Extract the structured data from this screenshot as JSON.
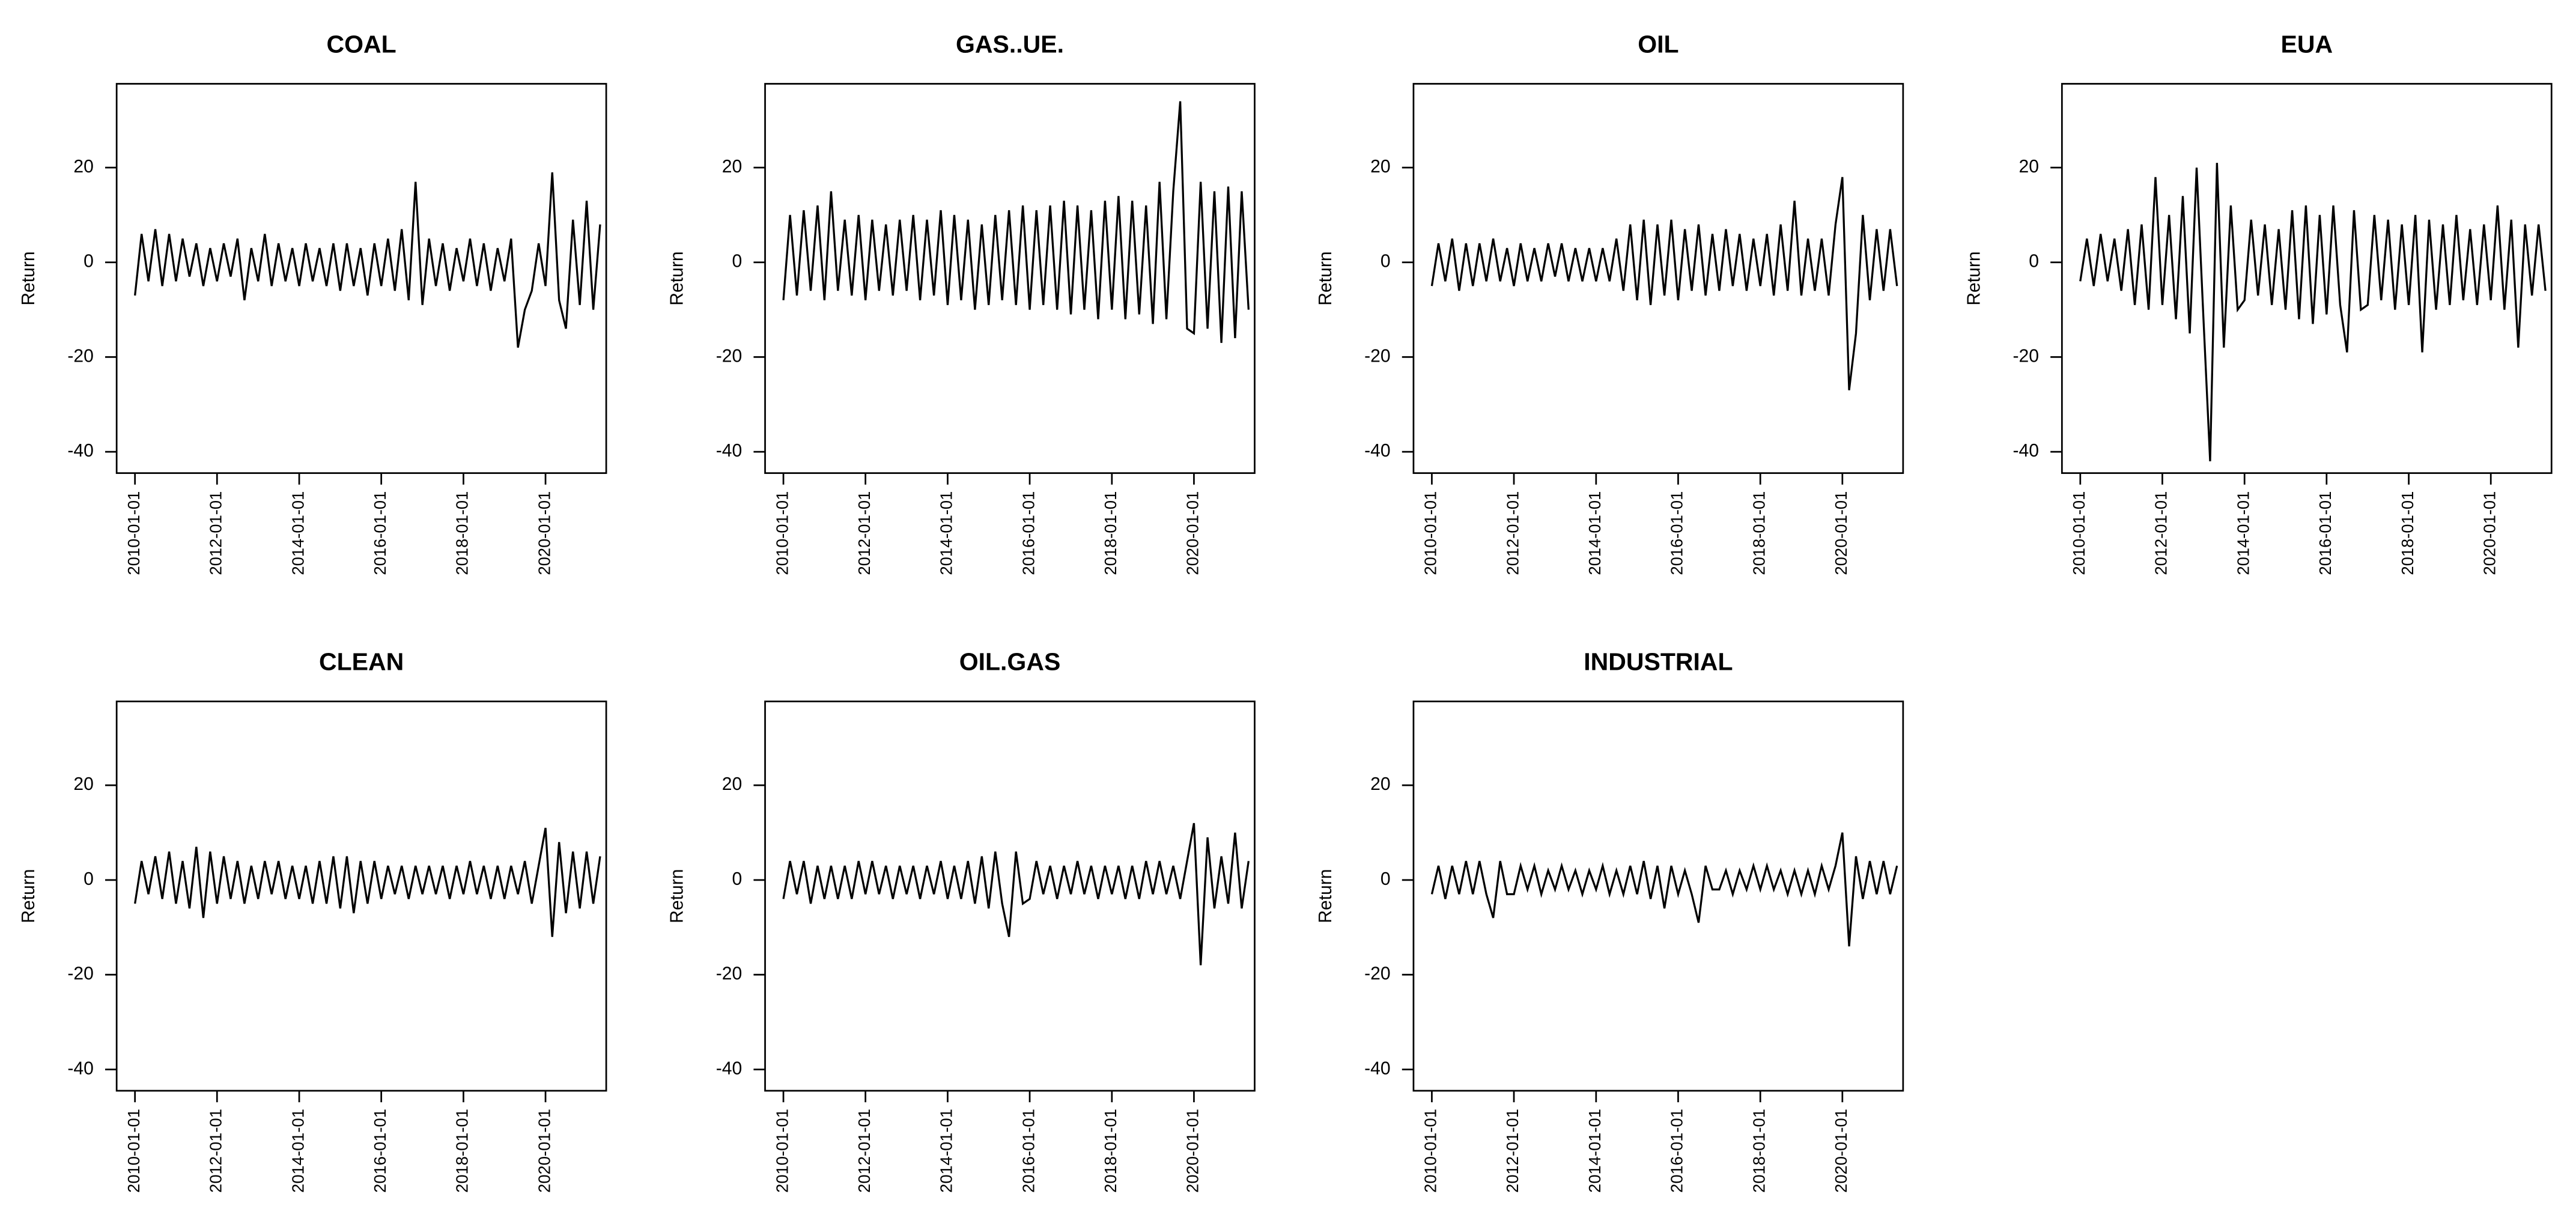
{
  "chart_data": [
    {
      "type": "line",
      "title": "COAL",
      "ylabel": "Return",
      "color": "#000000",
      "x": [
        "2010-01-01",
        "2010-03-01",
        "2010-05-01",
        "2010-07-01",
        "2010-09-01",
        "2010-11-01",
        "2011-01-01",
        "2011-03-01",
        "2011-05-01",
        "2011-07-01",
        "2011-09-01",
        "2011-11-01",
        "2012-01-01",
        "2012-03-01",
        "2012-05-01",
        "2012-07-01",
        "2012-09-01",
        "2012-11-01",
        "2013-01-01",
        "2013-03-01",
        "2013-05-01",
        "2013-07-01",
        "2013-09-01",
        "2013-11-01",
        "2014-01-01",
        "2014-03-01",
        "2014-05-01",
        "2014-07-01",
        "2014-09-01",
        "2014-11-01",
        "2015-01-01",
        "2015-03-01",
        "2015-05-01",
        "2015-07-01",
        "2015-09-01",
        "2015-11-01",
        "2016-01-01",
        "2016-03-01",
        "2016-05-01",
        "2016-07-01",
        "2016-09-01",
        "2016-11-01",
        "2017-01-01",
        "2017-03-01",
        "2017-05-01",
        "2017-07-01",
        "2017-09-01",
        "2017-11-01",
        "2018-01-01",
        "2018-03-01",
        "2018-05-01",
        "2018-07-01",
        "2018-09-01",
        "2018-11-01",
        "2019-01-01",
        "2019-03-01",
        "2019-05-01",
        "2019-07-01",
        "2019-09-01",
        "2019-11-01",
        "2020-01-01",
        "2020-03-01",
        "2020-05-01",
        "2020-07-01",
        "2020-09-01",
        "2020-11-01",
        "2021-01-01",
        "2021-03-01",
        "2021-05-01"
      ],
      "values": [
        -7,
        6,
        -4,
        7,
        -5,
        6,
        -4,
        5,
        -3,
        4,
        -5,
        3,
        -4,
        4,
        -3,
        5,
        -8,
        3,
        -4,
        6,
        -5,
        4,
        -4,
        3,
        -5,
        4,
        -4,
        3,
        -5,
        4,
        -6,
        4,
        -5,
        3,
        -7,
        4,
        -5,
        5,
        -6,
        7,
        -8,
        17,
        -9,
        5,
        -5,
        4,
        -6,
        3,
        -4,
        5,
        -5,
        4,
        -6,
        3,
        -4,
        5,
        -18,
        -10,
        -6,
        4,
        -5,
        19,
        -8,
        -14,
        9,
        -9,
        13,
        -10,
        8
      ],
      "xlim": [
        "2009-07-22",
        "2021-06-24"
      ],
      "xticks": [
        "2010-01-01",
        "2012-01-01",
        "2014-01-01",
        "2016-01-01",
        "2018-01-01",
        "2020-01-01"
      ],
      "ylim": [
        -44.5,
        37.7
      ],
      "yticks": [
        -40,
        -20,
        0,
        20
      ]
    },
    {
      "type": "line",
      "title": "GAS..UE.",
      "ylabel": "Return",
      "color": "#000000",
      "x": [
        "2010-01-01",
        "2010-03-01",
        "2010-05-01",
        "2010-07-01",
        "2010-09-01",
        "2010-11-01",
        "2011-01-01",
        "2011-03-01",
        "2011-05-01",
        "2011-07-01",
        "2011-09-01",
        "2011-11-01",
        "2012-01-01",
        "2012-03-01",
        "2012-05-01",
        "2012-07-01",
        "2012-09-01",
        "2012-11-01",
        "2013-01-01",
        "2013-03-01",
        "2013-05-01",
        "2013-07-01",
        "2013-09-01",
        "2013-11-01",
        "2014-01-01",
        "2014-03-01",
        "2014-05-01",
        "2014-07-01",
        "2014-09-01",
        "2014-11-01",
        "2015-01-01",
        "2015-03-01",
        "2015-05-01",
        "2015-07-01",
        "2015-09-01",
        "2015-11-01",
        "2016-01-01",
        "2016-03-01",
        "2016-05-01",
        "2016-07-01",
        "2016-09-01",
        "2016-11-01",
        "2017-01-01",
        "2017-03-01",
        "2017-05-01",
        "2017-07-01",
        "2017-09-01",
        "2017-11-01",
        "2018-01-01",
        "2018-03-01",
        "2018-05-01",
        "2018-07-01",
        "2018-09-01",
        "2018-11-01",
        "2019-01-01",
        "2019-03-01",
        "2019-05-01",
        "2019-07-01",
        "2019-09-01",
        "2019-11-01",
        "2020-01-01",
        "2020-03-01",
        "2020-05-01",
        "2020-07-01",
        "2020-09-01",
        "2020-11-01",
        "2021-01-01",
        "2021-03-01",
        "2021-05-01"
      ],
      "values": [
        -8,
        10,
        -7,
        11,
        -6,
        12,
        -8,
        15,
        -6,
        9,
        -7,
        10,
        -8,
        9,
        -6,
        8,
        -7,
        9,
        -6,
        10,
        -8,
        9,
        -7,
        11,
        -9,
        10,
        -8,
        9,
        -10,
        8,
        -9,
        10,
        -8,
        11,
        -9,
        12,
        -10,
        11,
        -9,
        12,
        -10,
        13,
        -11,
        12,
        -10,
        11,
        -12,
        13,
        -10,
        14,
        -12,
        13,
        -11,
        12,
        -13,
        17,
        -12,
        15,
        34,
        -14,
        -15,
        17,
        -14,
        15,
        -17,
        16,
        -16,
        15,
        -10
      ],
      "xlim": [
        "2009-07-22",
        "2021-06-24"
      ],
      "xticks": [
        "2010-01-01",
        "2012-01-01",
        "2014-01-01",
        "2016-01-01",
        "2018-01-01",
        "2020-01-01"
      ],
      "ylim": [
        -44.5,
        37.7
      ],
      "yticks": [
        -40,
        -20,
        0,
        20
      ]
    },
    {
      "type": "line",
      "title": "OIL",
      "ylabel": "Return",
      "color": "#000000",
      "x": [
        "2010-01-01",
        "2010-03-01",
        "2010-05-01",
        "2010-07-01",
        "2010-09-01",
        "2010-11-01",
        "2011-01-01",
        "2011-03-01",
        "2011-05-01",
        "2011-07-01",
        "2011-09-01",
        "2011-11-01",
        "2012-01-01",
        "2012-03-01",
        "2012-05-01",
        "2012-07-01",
        "2012-09-01",
        "2012-11-01",
        "2013-01-01",
        "2013-03-01",
        "2013-05-01",
        "2013-07-01",
        "2013-09-01",
        "2013-11-01",
        "2014-01-01",
        "2014-03-01",
        "2014-05-01",
        "2014-07-01",
        "2014-09-01",
        "2014-11-01",
        "2015-01-01",
        "2015-03-01",
        "2015-05-01",
        "2015-07-01",
        "2015-09-01",
        "2015-11-01",
        "2016-01-01",
        "2016-03-01",
        "2016-05-01",
        "2016-07-01",
        "2016-09-01",
        "2016-11-01",
        "2017-01-01",
        "2017-03-01",
        "2017-05-01",
        "2017-07-01",
        "2017-09-01",
        "2017-11-01",
        "2018-01-01",
        "2018-03-01",
        "2018-05-01",
        "2018-07-01",
        "2018-09-01",
        "2018-11-01",
        "2019-01-01",
        "2019-03-01",
        "2019-05-01",
        "2019-07-01",
        "2019-09-01",
        "2019-11-01",
        "2020-01-01",
        "2020-03-01",
        "2020-05-01",
        "2020-07-01",
        "2020-09-01",
        "2020-11-01",
        "2021-01-01",
        "2021-03-01",
        "2021-05-01"
      ],
      "values": [
        -5,
        4,
        -4,
        5,
        -6,
        4,
        -5,
        4,
        -4,
        5,
        -4,
        3,
        -5,
        4,
        -4,
        3,
        -4,
        4,
        -3,
        4,
        -4,
        3,
        -4,
        3,
        -4,
        3,
        -4,
        5,
        -6,
        8,
        -8,
        9,
        -9,
        8,
        -7,
        9,
        -8,
        7,
        -6,
        8,
        -7,
        6,
        -6,
        7,
        -5,
        6,
        -6,
        5,
        -5,
        6,
        -7,
        8,
        -6,
        13,
        -7,
        5,
        -6,
        5,
        -7,
        8,
        18,
        -27,
        -15,
        10,
        -8,
        7,
        -6,
        7,
        -5
      ],
      "xlim": [
        "2009-07-22",
        "2021-06-24"
      ],
      "xticks": [
        "2010-01-01",
        "2012-01-01",
        "2014-01-01",
        "2016-01-01",
        "2018-01-01",
        "2020-01-01"
      ],
      "ylim": [
        -44.5,
        37.7
      ],
      "yticks": [
        -40,
        -20,
        0,
        20
      ]
    },
    {
      "type": "line",
      "title": "EUA",
      "ylabel": "Return",
      "color": "#000000",
      "x": [
        "2010-01-01",
        "2010-03-01",
        "2010-05-01",
        "2010-07-01",
        "2010-09-01",
        "2010-11-01",
        "2011-01-01",
        "2011-03-01",
        "2011-05-01",
        "2011-07-01",
        "2011-09-01",
        "2011-11-01",
        "2012-01-01",
        "2012-03-01",
        "2012-05-01",
        "2012-07-01",
        "2012-09-01",
        "2012-11-01",
        "2013-01-01",
        "2013-03-01",
        "2013-05-01",
        "2013-07-01",
        "2013-09-01",
        "2013-11-01",
        "2014-01-01",
        "2014-03-01",
        "2014-05-01",
        "2014-07-01",
        "2014-09-01",
        "2014-11-01",
        "2015-01-01",
        "2015-03-01",
        "2015-05-01",
        "2015-07-01",
        "2015-09-01",
        "2015-11-01",
        "2016-01-01",
        "2016-03-01",
        "2016-05-01",
        "2016-07-01",
        "2016-09-01",
        "2016-11-01",
        "2017-01-01",
        "2017-03-01",
        "2017-05-01",
        "2017-07-01",
        "2017-09-01",
        "2017-11-01",
        "2018-01-01",
        "2018-03-01",
        "2018-05-01",
        "2018-07-01",
        "2018-09-01",
        "2018-11-01",
        "2019-01-01",
        "2019-03-01",
        "2019-05-01",
        "2019-07-01",
        "2019-09-01",
        "2019-11-01",
        "2020-01-01",
        "2020-03-01",
        "2020-05-01",
        "2020-07-01",
        "2020-09-01",
        "2020-11-01",
        "2021-01-01",
        "2021-03-01",
        "2021-05-01"
      ],
      "values": [
        -4,
        5,
        -5,
        6,
        -4,
        5,
        -6,
        7,
        -9,
        8,
        -10,
        18,
        -9,
        10,
        -12,
        14,
        -15,
        20,
        -12,
        -42,
        21,
        -18,
        12,
        -10,
        -8,
        9,
        -7,
        8,
        -9,
        7,
        -10,
        11,
        -12,
        12,
        -13,
        10,
        -11,
        12,
        -9,
        -19,
        11,
        -10,
        -9,
        10,
        -8,
        9,
        -10,
        8,
        -9,
        10,
        -19,
        9,
        -10,
        8,
        -9,
        10,
        -8,
        7,
        -9,
        8,
        -8,
        12,
        -10,
        9,
        -18,
        8,
        -7,
        8,
        -6
      ],
      "xlim": [
        "2009-07-22",
        "2021-06-24"
      ],
      "xticks": [
        "2010-01-01",
        "2012-01-01",
        "2014-01-01",
        "2016-01-01",
        "2018-01-01",
        "2020-01-01"
      ],
      "ylim": [
        -44.5,
        37.7
      ],
      "yticks": [
        -40,
        -20,
        0,
        20
      ]
    },
    {
      "type": "line",
      "title": "CLEAN",
      "ylabel": "Return",
      "color": "#000000",
      "x": [
        "2010-01-01",
        "2010-03-01",
        "2010-05-01",
        "2010-07-01",
        "2010-09-01",
        "2010-11-01",
        "2011-01-01",
        "2011-03-01",
        "2011-05-01",
        "2011-07-01",
        "2011-09-01",
        "2011-11-01",
        "2012-01-01",
        "2012-03-01",
        "2012-05-01",
        "2012-07-01",
        "2012-09-01",
        "2012-11-01",
        "2013-01-01",
        "2013-03-01",
        "2013-05-01",
        "2013-07-01",
        "2013-09-01",
        "2013-11-01",
        "2014-01-01",
        "2014-03-01",
        "2014-05-01",
        "2014-07-01",
        "2014-09-01",
        "2014-11-01",
        "2015-01-01",
        "2015-03-01",
        "2015-05-01",
        "2015-07-01",
        "2015-09-01",
        "2015-11-01",
        "2016-01-01",
        "2016-03-01",
        "2016-05-01",
        "2016-07-01",
        "2016-09-01",
        "2016-11-01",
        "2017-01-01",
        "2017-03-01",
        "2017-05-01",
        "2017-07-01",
        "2017-09-01",
        "2017-11-01",
        "2018-01-01",
        "2018-03-01",
        "2018-05-01",
        "2018-07-01",
        "2018-09-01",
        "2018-11-01",
        "2019-01-01",
        "2019-03-01",
        "2019-05-01",
        "2019-07-01",
        "2019-09-01",
        "2019-11-01",
        "2020-01-01",
        "2020-03-01",
        "2020-05-01",
        "2020-07-01",
        "2020-09-01",
        "2020-11-01",
        "2021-01-01",
        "2021-03-01",
        "2021-05-01"
      ],
      "values": [
        -5,
        4,
        -3,
        5,
        -4,
        6,
        -5,
        4,
        -6,
        7,
        -8,
        6,
        -5,
        5,
        -4,
        4,
        -5,
        3,
        -4,
        4,
        -3,
        4,
        -4,
        3,
        -4,
        3,
        -5,
        4,
        -5,
        5,
        -6,
        5,
        -7,
        4,
        -5,
        4,
        -4,
        3,
        -3,
        3,
        -4,
        3,
        -3,
        3,
        -3,
        3,
        -4,
        3,
        -3,
        4,
        -3,
        3,
        -4,
        3,
        -4,
        3,
        -3,
        4,
        -5,
        3,
        11,
        -12,
        8,
        -7,
        6,
        -6,
        6,
        -5,
        5
      ],
      "xlim": [
        "2009-07-22",
        "2021-06-24"
      ],
      "xticks": [
        "2010-01-01",
        "2012-01-01",
        "2014-01-01",
        "2016-01-01",
        "2018-01-01",
        "2020-01-01"
      ],
      "ylim": [
        -44.5,
        37.7
      ],
      "yticks": [
        -40,
        -20,
        0,
        20
      ]
    },
    {
      "type": "line",
      "title": "OIL.GAS",
      "ylabel": "Return",
      "color": "#000000",
      "x": [
        "2010-01-01",
        "2010-03-01",
        "2010-05-01",
        "2010-07-01",
        "2010-09-01",
        "2010-11-01",
        "2011-01-01",
        "2011-03-01",
        "2011-05-01",
        "2011-07-01",
        "2011-09-01",
        "2011-11-01",
        "2012-01-01",
        "2012-03-01",
        "2012-05-01",
        "2012-07-01",
        "2012-09-01",
        "2012-11-01",
        "2013-01-01",
        "2013-03-01",
        "2013-05-01",
        "2013-07-01",
        "2013-09-01",
        "2013-11-01",
        "2014-01-01",
        "2014-03-01",
        "2014-05-01",
        "2014-07-01",
        "2014-09-01",
        "2014-11-01",
        "2015-01-01",
        "2015-03-01",
        "2015-05-01",
        "2015-07-01",
        "2015-09-01",
        "2015-11-01",
        "2016-01-01",
        "2016-03-01",
        "2016-05-01",
        "2016-07-01",
        "2016-09-01",
        "2016-11-01",
        "2017-01-01",
        "2017-03-01",
        "2017-05-01",
        "2017-07-01",
        "2017-09-01",
        "2017-11-01",
        "2018-01-01",
        "2018-03-01",
        "2018-05-01",
        "2018-07-01",
        "2018-09-01",
        "2018-11-01",
        "2019-01-01",
        "2019-03-01",
        "2019-05-01",
        "2019-07-01",
        "2019-09-01",
        "2019-11-01",
        "2020-01-01",
        "2020-03-01",
        "2020-05-01",
        "2020-07-01",
        "2020-09-01",
        "2020-11-01",
        "2021-01-01",
        "2021-03-01",
        "2021-05-01"
      ],
      "values": [
        -4,
        4,
        -3,
        4,
        -5,
        3,
        -4,
        3,
        -4,
        3,
        -4,
        4,
        -3,
        4,
        -3,
        3,
        -4,
        3,
        -3,
        3,
        -4,
        3,
        -3,
        4,
        -4,
        3,
        -4,
        4,
        -5,
        5,
        -6,
        6,
        -5,
        -12,
        6,
        -5,
        -4,
        4,
        -3,
        3,
        -4,
        3,
        -3,
        4,
        -3,
        3,
        -4,
        3,
        -3,
        3,
        -4,
        3,
        -4,
        4,
        -3,
        4,
        -3,
        3,
        -4,
        4,
        12,
        -18,
        9,
        -6,
        5,
        -5,
        10,
        -6,
        4
      ],
      "xlim": [
        "2009-07-22",
        "2021-06-24"
      ],
      "xticks": [
        "2010-01-01",
        "2012-01-01",
        "2014-01-01",
        "2016-01-01",
        "2018-01-01",
        "2020-01-01"
      ],
      "ylim": [
        -44.5,
        37.7
      ],
      "yticks": [
        -40,
        -20,
        0,
        20
      ]
    },
    {
      "type": "line",
      "title": "INDUSTRIAL",
      "ylabel": "Return",
      "color": "#000000",
      "x": [
        "2010-01-01",
        "2010-03-01",
        "2010-05-01",
        "2010-07-01",
        "2010-09-01",
        "2010-11-01",
        "2011-01-01",
        "2011-03-01",
        "2011-05-01",
        "2011-07-01",
        "2011-09-01",
        "2011-11-01",
        "2012-01-01",
        "2012-03-01",
        "2012-05-01",
        "2012-07-01",
        "2012-09-01",
        "2012-11-01",
        "2013-01-01",
        "2013-03-01",
        "2013-05-01",
        "2013-07-01",
        "2013-09-01",
        "2013-11-01",
        "2014-01-01",
        "2014-03-01",
        "2014-05-01",
        "2014-07-01",
        "2014-09-01",
        "2014-11-01",
        "2015-01-01",
        "2015-03-01",
        "2015-05-01",
        "2015-07-01",
        "2015-09-01",
        "2015-11-01",
        "2016-01-01",
        "2016-03-01",
        "2016-05-01",
        "2016-07-01",
        "2016-09-01",
        "2016-11-01",
        "2017-01-01",
        "2017-03-01",
        "2017-05-01",
        "2017-07-01",
        "2017-09-01",
        "2017-11-01",
        "2018-01-01",
        "2018-03-01",
        "2018-05-01",
        "2018-07-01",
        "2018-09-01",
        "2018-11-01",
        "2019-01-01",
        "2019-03-01",
        "2019-05-01",
        "2019-07-01",
        "2019-09-01",
        "2019-11-01",
        "2020-01-01",
        "2020-03-01",
        "2020-05-01",
        "2020-07-01",
        "2020-09-01",
        "2020-11-01",
        "2021-01-01",
        "2021-03-01",
        "2021-05-01"
      ],
      "values": [
        -3,
        3,
        -4,
        3,
        -3,
        4,
        -3,
        4,
        -3,
        -8,
        4,
        -3,
        -3,
        3,
        -2,
        3,
        -3,
        2,
        -2,
        3,
        -2,
        2,
        -3,
        2,
        -2,
        3,
        -3,
        2,
        -3,
        3,
        -3,
        4,
        -4,
        3,
        -6,
        3,
        -3,
        2,
        -3,
        -9,
        3,
        -2,
        -2,
        2,
        -3,
        2,
        -2,
        3,
        -2,
        3,
        -2,
        2,
        -3,
        2,
        -3,
        2,
        -3,
        3,
        -2,
        3,
        10,
        -14,
        5,
        -4,
        4,
        -3,
        4,
        -3,
        3
      ],
      "xlim": [
        "2009-07-22",
        "2021-06-24"
      ],
      "xticks": [
        "2010-01-01",
        "2012-01-01",
        "2014-01-01",
        "2016-01-01",
        "2018-01-01",
        "2020-01-01"
      ],
      "ylim": [
        -44.5,
        37.7
      ],
      "yticks": [
        -40,
        -20,
        0,
        20
      ]
    }
  ]
}
